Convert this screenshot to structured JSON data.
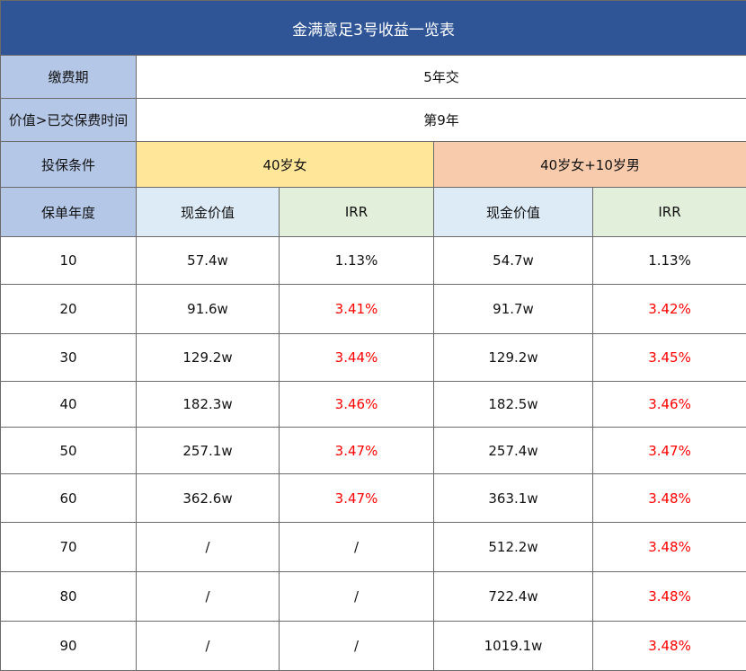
{
  "title": "金满意足3号收益一览表",
  "rows_info": [
    {
      "label": "缴费期",
      "value": "5年交"
    },
    {
      "label": "价值>已交保费时间",
      "value": "第9年"
    }
  ],
  "condition": {
    "label": "投保条件",
    "group_a": "40岁女",
    "group_b": "40岁女+10岁男"
  },
  "header": {
    "year": "保单年度",
    "cash_a": "现金价值",
    "irr_a": "IRR",
    "cash_b": "现金价值",
    "irr_b": "IRR"
  },
  "rows": [
    {
      "year": "10",
      "cash_a": "57.4w",
      "irr_a": "1.13%",
      "cash_b": "54.7w",
      "irr_b": "1.13%"
    },
    {
      "year": "20",
      "cash_a": "91.6w",
      "irr_a": "3.41%",
      "cash_b": "91.7w",
      "irr_b": "3.42%"
    },
    {
      "year": "30",
      "cash_a": "129.2w",
      "irr_a": "3.44%",
      "cash_b": "129.2w",
      "irr_b": "3.45%"
    },
    {
      "year": "40",
      "cash_a": "182.3w",
      "irr_a": "3.46%",
      "cash_b": "182.5w",
      "irr_b": "3.46%"
    },
    {
      "year": "50",
      "cash_a": "257.1w",
      "irr_a": "3.47%",
      "cash_b": "257.4w",
      "irr_b": "3.47%"
    },
    {
      "year": "60",
      "cash_a": "362.6w",
      "irr_a": "3.47%",
      "cash_b": "363.1w",
      "irr_b": "3.48%"
    },
    {
      "year": "70",
      "cash_a": "/",
      "irr_a": "/",
      "cash_b": "512.2w",
      "irr_b": "3.48%"
    },
    {
      "year": "80",
      "cash_a": "/",
      "irr_a": "/",
      "cash_b": "722.4w",
      "irr_b": "3.48%"
    },
    {
      "year": "90",
      "cash_a": "/",
      "irr_a": "/",
      "cash_b": "1019.1w",
      "irr_b": "3.48%"
    }
  ],
  "colors": {
    "title_bg": "#2f5597",
    "label_bg": "#b4c7e7",
    "group_a_bg": "#ffe699",
    "group_b_bg": "#f8cbad",
    "cash_bg": "#ddebf7",
    "irr_bg": "#e2efda",
    "highlight_text": "#ff0000"
  }
}
